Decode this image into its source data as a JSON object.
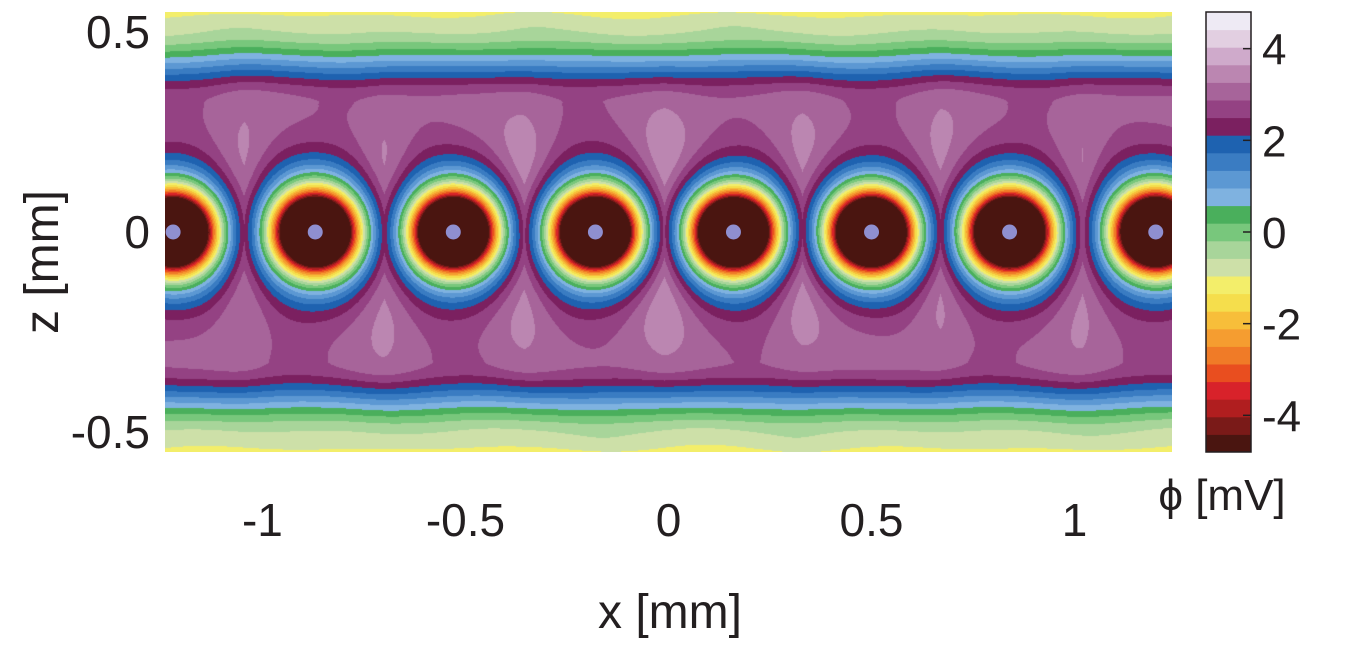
{
  "chart_data": {
    "type": "heatmap",
    "subtype": "filled-contour",
    "xlabel": "x [mm]",
    "ylabel": "z [mm]",
    "colorbar_label": "ϕ [mV]",
    "xlim": [
      -1.24,
      1.24
    ],
    "ylim": [
      -0.55,
      0.55
    ],
    "x_ticks": [
      -1,
      -0.5,
      0,
      0.5,
      1
    ],
    "x_tick_labels": [
      "-1",
      "-0.5",
      "0",
      "0.5",
      "1"
    ],
    "y_ticks": [
      -0.5,
      0,
      0.5
    ],
    "y_tick_labels": [
      "-0.5",
      "0",
      "0.5"
    ],
    "colorbar": {
      "range": [
        -4.8,
        4.8
      ],
      "levels": 24,
      "ticks": [
        -4,
        -2,
        0,
        2,
        4
      ],
      "tick_labels": [
        "-4",
        "-2",
        "0",
        "2",
        "4"
      ],
      "colors": [
        "#4a1510",
        "#7a1a18",
        "#b01e1f",
        "#d8222a",
        "#e94e1f",
        "#f07b27",
        "#f59d30",
        "#f7be3a",
        "#f5de4c",
        "#f3ee6a",
        "#cde0a8",
        "#a8d59a",
        "#78c77c",
        "#4aaf5c",
        "#7fb2e0",
        "#5c98d3",
        "#3a7cc2",
        "#1e62b0",
        "#7b2060",
        "#944283",
        "#a7649a",
        "#bb86b1",
        "#cfaacb",
        "#e2cfe1",
        "#eeeaf4"
      ]
    },
    "rod_centers_x": [
      -1.22,
      -0.87,
      -0.53,
      -0.18,
      0.16,
      0.5,
      0.84,
      1.2
    ],
    "rod_center_z": 0,
    "rod_potential_mV": -4.8,
    "boundary_potential_mV": -1,
    "field": "periodic row of strongly negative rods along z = 0 inside a positively charged layer (2–4.5 mV) bounded by near-zero/slightly negative regions at |z| ≈ 0.5 mm",
    "grid": false,
    "legend": "colorbar-right"
  }
}
